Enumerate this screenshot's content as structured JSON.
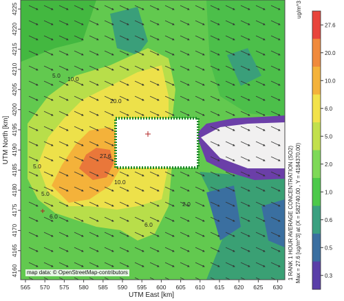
{
  "map": {
    "x_axis_title": "UTM East [km]",
    "y_axis_title": "UTM North [km]",
    "x_ticks": [
      "565",
      "570",
      "575",
      "580",
      "585",
      "590",
      "595",
      "600",
      "605",
      "610",
      "615",
      "620",
      "625",
      "630"
    ],
    "y_ticks": [
      "4160",
      "4165",
      "4170",
      "4175",
      "4180",
      "4185",
      "4190",
      "4195",
      "4200",
      "4205",
      "4210",
      "4215",
      "4220",
      "4225"
    ],
    "attribution": "map data: © OpenStreetMap-contributors",
    "contour_labels": [
      "5.0",
      "10.0",
      "20.0",
      "27.6",
      "5.0",
      "6.0",
      "6.0",
      "10.0",
      "5.0",
      "2.0"
    ]
  },
  "colorbar": {
    "unit": "ug/m^3",
    "tick_labels": [
      "27.6",
      "20.0",
      "10.0",
      "6.0",
      "5.0",
      "2.0",
      "1.0",
      "0.6",
      "0.5",
      "0.3"
    ],
    "colors": [
      "#e8453c",
      "#f08a3c",
      "#f4b23a",
      "#f2e24a",
      "#c2e04c",
      "#7ed957",
      "#4cc94a",
      "#3aa080",
      "#3a6fa0",
      "#5a3fa8"
    ],
    "caption_1": "1 RANK 1 HOUR AVERAGE CONCENTRATION (SO2)",
    "caption_2": "Max = 27.6 [ug/m^3] at (X = 582740.00 , Y = 4184370.00)"
  }
}
